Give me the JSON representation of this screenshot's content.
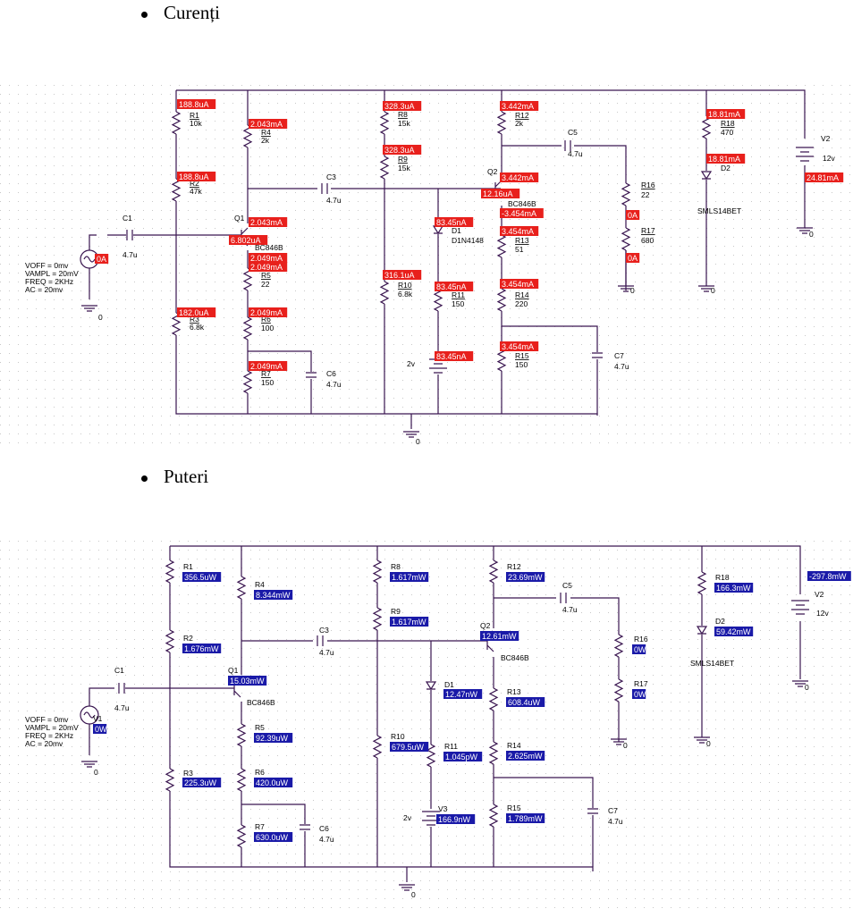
{
  "sections": [
    {
      "title": "Curenți",
      "schematic": {
        "components": {
          "R1": {
            "value": "10k"
          },
          "R2": {
            "value": "47k"
          },
          "R3": {
            "value": "6.8k"
          },
          "R4": {
            "value": "2k"
          },
          "R5": {
            "value": "22"
          },
          "R6": {
            "value": "100"
          },
          "R7": {
            "value": "150"
          },
          "R8": {
            "value": "15k"
          },
          "R9": {
            "value": "15k"
          },
          "R10": {
            "value": "6.8k"
          },
          "R11": {
            "value": "150"
          },
          "R12": {
            "value": "2k"
          },
          "R13": {
            "value": "51"
          },
          "R14": {
            "value": "220"
          },
          "R15": {
            "value": "150"
          },
          "R16": {
            "value": "22"
          },
          "R17": {
            "value": "680"
          },
          "R18": {
            "value": "470"
          },
          "C1": {
            "value": "4.7u"
          },
          "C3": {
            "value": "4.7u"
          },
          "C5": {
            "value": "4.7u"
          },
          "C6": {
            "value": "4.7u"
          },
          "C7": {
            "value": "4.7u"
          },
          "Q1": {
            "model": "BC846B"
          },
          "Q2": {
            "model": "BC846B"
          },
          "D1": {
            "model": "D1N4148"
          },
          "D2": {
            "model": "SMLS14BET"
          },
          "V1": {
            "params": [
              "VOFF = 0mv",
              "VAMPL = 20mV",
              "FREQ = 2KHz",
              "AC = 20mv"
            ]
          },
          "V2": {
            "value": "12v"
          },
          "V3": {
            "value": "2v"
          }
        },
        "annotations": {
          "top_r1": "188.8uA",
          "r2": "188.8uA",
          "r3": "182.0uA",
          "r4": "2.043mA",
          "q1c": "2.043mA",
          "q1b": "6.802uA",
          "q1e1": "2.049mA",
          "q1e2": "2.049mA",
          "r6": "2.049mA",
          "r7": "2.049mA",
          "r8": "328.3uA",
          "r9": "328.3uA",
          "r10": "316.1uA",
          "d1": "83.45nA",
          "r11": "83.45nA",
          "v3": "83.45nA",
          "r12": "3.442mA",
          "q2c": "3.442mA",
          "q2b": "12.16uA",
          "q2e": "-3.454mA",
          "r13": "3.454mA",
          "r14": "3.454mA",
          "r15": "3.454mA",
          "r16": "0A",
          "r17": "0A",
          "v1": "0A",
          "r18": "18.81mA",
          "d2": "18.81mA",
          "v2": "24.81mA"
        }
      }
    },
    {
      "title": "Puteri",
      "schematic": {
        "labels": {
          "R1": "R1",
          "R2": "R2",
          "R3": "R3",
          "R4": "R4",
          "R5": "R5",
          "R6": "R6",
          "R7": "R7",
          "R8": "R8",
          "R9": "R9",
          "R10": "R10",
          "R11": "R11",
          "R12": "R12",
          "R13": "R13",
          "R14": "R14",
          "R15": "R15",
          "R16": "R16",
          "R17": "R17",
          "R18": "R18",
          "C1": "C1",
          "C3": "C3",
          "C5": "C5",
          "C6": "C6",
          "C7": "C7",
          "Q1": "Q1",
          "Q2": "Q2",
          "D1": "D1",
          "D2": "D2",
          "V1": "V1",
          "V2": "V2",
          "V3": "V3",
          "c_val": "4.7u",
          "q_model": "BC846B",
          "d2_model": "SMLS14BET",
          "v2_val": "12v",
          "v3_val": "2v",
          "gnd": "0"
        },
        "annotations": {
          "r1": "356.5uW",
          "r2": "1.676mW",
          "r3": "225.3uW",
          "r4": "8.344mW",
          "q1": "15.03mW",
          "r5": "92.39uW",
          "r6": "420.0uW",
          "r7": "630.0uW",
          "r8": "1.617mW",
          "r9": "1.617mW",
          "r10": "679.5uW",
          "d1": "12.47nW",
          "r11": "1.045pW",
          "v3": "166.9nW",
          "r12": "23.69mW",
          "q2": "12.61mW",
          "r13": "608.4uW",
          "r14": "2.625mW",
          "r15": "1.789mW",
          "r16": "0W",
          "r17": "0W",
          "v1": "0W",
          "r18": "166.3mW",
          "d2": "59.42mW",
          "v2": "-297.8mW"
        }
      }
    }
  ],
  "colors": {
    "current_badge": "#e8201c",
    "power_badge": "#1a1aa8",
    "wire": "#3a1650",
    "part": "#3a1650",
    "grid": "#c8c8c8"
  }
}
